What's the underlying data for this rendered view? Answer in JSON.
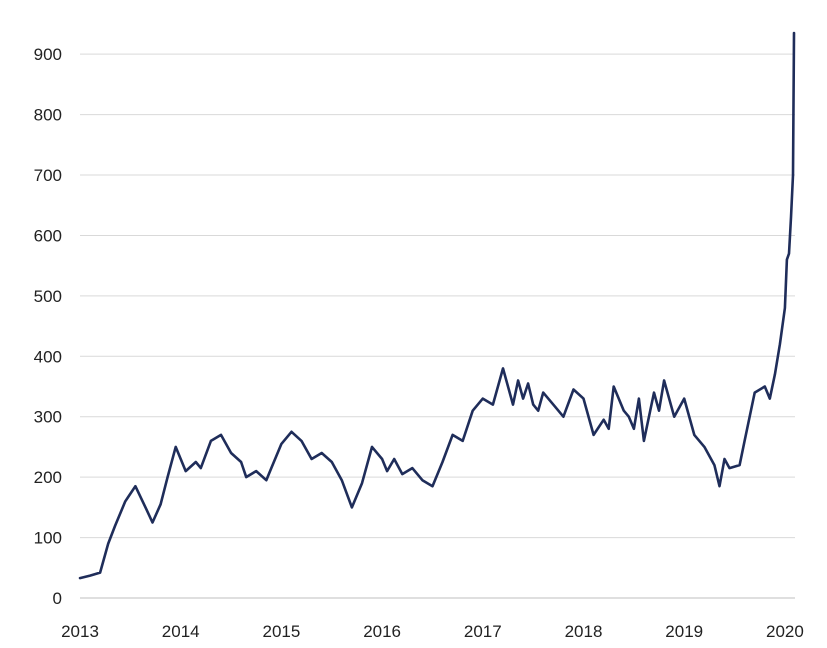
{
  "chart_data": {
    "type": "line",
    "title": "",
    "xlabel": "",
    "ylabel": "",
    "xlim": [
      2013,
      2020.1
    ],
    "ylim": [
      0,
      940
    ],
    "yticks": [
      0,
      100,
      200,
      300,
      400,
      500,
      600,
      700,
      800,
      900
    ],
    "xticks": [
      2013,
      2014,
      2015,
      2016,
      2017,
      2018,
      2019,
      2020
    ],
    "grid": true,
    "colors": {
      "line": "#1f2d5a",
      "grid": "#d9d9d9"
    },
    "series": [
      {
        "x": [
          2013.0,
          2013.1,
          2013.2,
          2013.28,
          2013.35,
          2013.45,
          2013.55,
          2013.65,
          2013.72,
          2013.8,
          2013.87,
          2013.95,
          2014.05,
          2014.15,
          2014.2,
          2014.3,
          2014.4,
          2014.5,
          2014.6,
          2014.65,
          2014.75,
          2014.85,
          2014.9,
          2015.0,
          2015.1,
          2015.2,
          2015.3,
          2015.4,
          2015.5,
          2015.6,
          2015.7,
          2015.8,
          2015.9,
          2016.0,
          2016.05,
          2016.12,
          2016.2,
          2016.3,
          2016.4,
          2016.5,
          2016.6,
          2016.7,
          2016.8,
          2016.9,
          2017.0,
          2017.1,
          2017.2,
          2017.3,
          2017.35,
          2017.4,
          2017.45,
          2017.5,
          2017.55,
          2017.6,
          2017.7,
          2017.8,
          2017.9,
          2018.0,
          2018.1,
          2018.2,
          2018.25,
          2018.3,
          2018.4,
          2018.45,
          2018.5,
          2018.55,
          2018.6,
          2018.7,
          2018.75,
          2018.8,
          2018.9,
          2019.0,
          2019.1,
          2019.2,
          2019.3,
          2019.35,
          2019.4,
          2019.45,
          2019.55,
          2019.6,
          2019.7,
          2019.8,
          2019.85,
          2019.9,
          2019.95,
          2020.0,
          2020.02,
          2020.04,
          2020.06,
          2020.08,
          2020.09
        ],
        "y": [
          33,
          37,
          42,
          90,
          120,
          160,
          185,
          150,
          125,
          155,
          200,
          250,
          210,
          225,
          215,
          260,
          270,
          240,
          225,
          200,
          210,
          195,
          215,
          255,
          275,
          260,
          230,
          240,
          225,
          195,
          150,
          190,
          250,
          230,
          210,
          230,
          205,
          215,
          195,
          185,
          225,
          270,
          260,
          310,
          330,
          320,
          380,
          320,
          360,
          330,
          355,
          320,
          310,
          340,
          320,
          300,
          345,
          330,
          270,
          295,
          280,
          350,
          310,
          300,
          280,
          330,
          260,
          340,
          310,
          360,
          300,
          330,
          270,
          250,
          220,
          185,
          230,
          215,
          220,
          260,
          340,
          350,
          330,
          370,
          420,
          480,
          560,
          570,
          630,
          700,
          935
        ]
      }
    ]
  }
}
